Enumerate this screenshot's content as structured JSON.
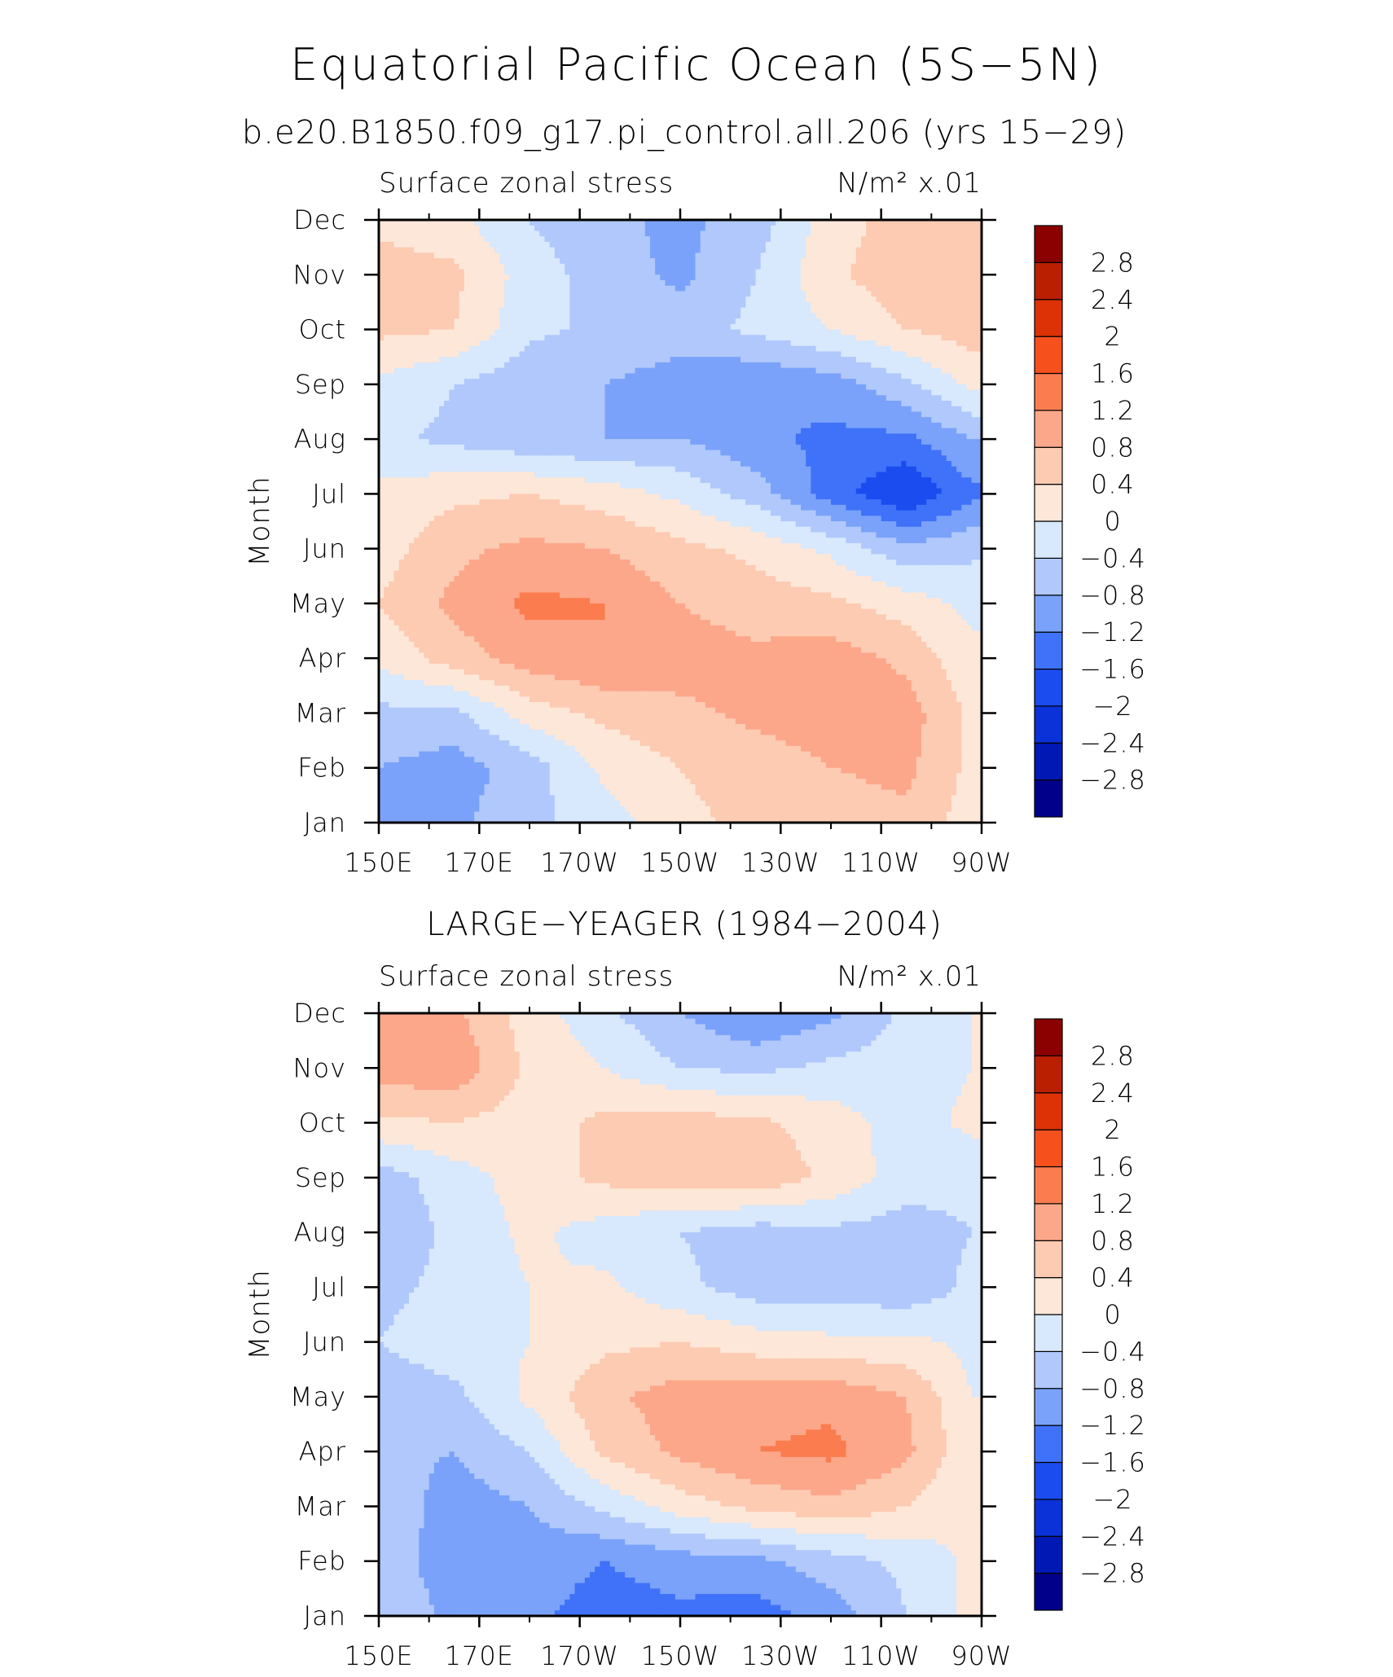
{
  "figure": {
    "title": "Equatorial Pacific Ocean (5S−5N)"
  },
  "chart_data": [
    {
      "type": "heatmap",
      "subtitle": "b.e20.B1850.f09_g17.pi_control.all.206 (yrs 15−29)",
      "left_label": "Surface zonal stress",
      "units_label": "N/m² x.01",
      "ylabel": "Month",
      "x_ticks": [
        "150E",
        "170E",
        "170W",
        "150W",
        "130W",
        "110W",
        "90W"
      ],
      "x_range": [
        150,
        270
      ],
      "y_ticks": [
        "Jan",
        "Feb",
        "Mar",
        "Apr",
        "May",
        "Jun",
        "Jul",
        "Aug",
        "Sep",
        "Oct",
        "Nov",
        "Dec"
      ],
      "levels": [
        -2.8,
        -2.4,
        -2,
        -1.6,
        -1.2,
        -0.8,
        -0.4,
        0,
        0.4,
        0.8,
        1.2,
        1.6,
        2,
        2.4,
        2.8
      ],
      "colorbar_labels": [
        "2.8",
        "2.4",
        "2",
        "1.6",
        "1.2",
        "0.8",
        "0.4",
        "0",
        "−0.4",
        "−0.8",
        "−1.2",
        "−1.6",
        "−2",
        "−2.4",
        "−2.8"
      ],
      "colors": [
        "#00008b",
        "#0018b4",
        "#0a32d8",
        "#1a4cf0",
        "#3f72f8",
        "#7aa2fa",
        "#b0c8fb",
        "#d8e8fd",
        "#fde7d8",
        "#fdcab2",
        "#fca78a",
        "#fb7c4f",
        "#f6501d",
        "#dd3205",
        "#b91f00",
        "#8b0000"
      ],
      "x": [
        150,
        165,
        180,
        195,
        210,
        225,
        240,
        255,
        268
      ],
      "y": [
        "Jan",
        "Feb",
        "Mar",
        "Apr",
        "May",
        "Jun",
        "Jul",
        "Aug",
        "Sep",
        "Oct",
        "Nov",
        "Dec"
      ],
      "z": [
        [
          -0.9,
          -0.9,
          -0.5,
          -0.2,
          0.3,
          0.5,
          0.6,
          0.7,
          0.2
        ],
        [
          -0.8,
          -1.0,
          -0.6,
          0.1,
          0.4,
          0.6,
          0.8,
          0.9,
          0.3
        ],
        [
          -0.5,
          -0.5,
          0.2,
          0.5,
          0.7,
          0.9,
          1.0,
          1.0,
          0.3
        ],
        [
          0.1,
          0.6,
          1.0,
          1.2,
          1.0,
          0.9,
          1.0,
          0.7,
          0.1
        ],
        [
          0.4,
          0.9,
          1.3,
          1.2,
          0.8,
          0.6,
          0.5,
          0.2,
          -0.1
        ],
        [
          0.2,
          0.7,
          0.9,
          0.8,
          0.5,
          0.3,
          -0.1,
          -0.7,
          -0.5
        ],
        [
          0.1,
          0.3,
          0.4,
          0.2,
          -0.1,
          -0.6,
          -1.4,
          -2.0,
          -1.3
        ],
        [
          -0.3,
          -0.5,
          -0.7,
          -0.8,
          -0.8,
          -1.1,
          -1.3,
          -1.3,
          -0.8
        ],
        [
          -0.1,
          -0.4,
          -0.7,
          -0.8,
          -1.0,
          -1.2,
          -1.0,
          -0.5,
          0.1
        ],
        [
          0.5,
          0.4,
          -0.3,
          -0.5,
          -0.6,
          -0.3,
          0.0,
          0.4,
          0.6
        ],
        [
          0.6,
          0.5,
          -0.2,
          -0.6,
          -0.9,
          -0.4,
          0.3,
          0.7,
          0.8
        ],
        [
          0.3,
          0.1,
          -0.4,
          -0.7,
          -0.9,
          -0.6,
          0.2,
          0.6,
          0.7
        ]
      ]
    },
    {
      "type": "heatmap",
      "subtitle": "LARGE−YEAGER (1984−2004)",
      "left_label": "Surface zonal stress",
      "units_label": "N/m² x.01",
      "ylabel": "Month",
      "x_ticks": [
        "150E",
        "170E",
        "170W",
        "150W",
        "130W",
        "110W",
        "90W"
      ],
      "x_range": [
        150,
        270
      ],
      "y_ticks": [
        "Jan",
        "Feb",
        "Mar",
        "Apr",
        "May",
        "Jun",
        "Jul",
        "Aug",
        "Sep",
        "Oct",
        "Nov",
        "Dec"
      ],
      "levels": [
        -2.8,
        -2.4,
        -2,
        -1.6,
        -1.2,
        -0.8,
        -0.4,
        0,
        0.4,
        0.8,
        1.2,
        1.6,
        2,
        2.4,
        2.8
      ],
      "colorbar_labels": [
        "2.8",
        "2.4",
        "2",
        "1.6",
        "1.2",
        "0.8",
        "0.4",
        "0",
        "−0.4",
        "−0.8",
        "−1.2",
        "−1.6",
        "−2",
        "−2.4",
        "−2.8"
      ],
      "colors": [
        "#00008b",
        "#0018b4",
        "#0a32d8",
        "#1a4cf0",
        "#3f72f8",
        "#7aa2fa",
        "#b0c8fb",
        "#d8e8fd",
        "#fde7d8",
        "#fdcab2",
        "#fca78a",
        "#fb7c4f",
        "#f6501d",
        "#dd3205",
        "#b91f00",
        "#8b0000"
      ],
      "x": [
        150,
        165,
        180,
        195,
        210,
        225,
        240,
        255,
        268
      ],
      "y": [
        "Jan",
        "Feb",
        "Mar",
        "Apr",
        "May",
        "Jun",
        "Jul",
        "Aug",
        "Sep",
        "Oct",
        "Nov",
        "Dec"
      ],
      "z": [
        [
          -0.5,
          -0.9,
          -1.1,
          -1.4,
          -1.3,
          -1.4,
          -1.0,
          -0.4,
          0.1
        ],
        [
          -0.6,
          -1.0,
          -1.0,
          -1.2,
          -1.0,
          -0.9,
          -0.6,
          -0.3,
          0.1
        ],
        [
          -0.5,
          -1.0,
          -0.8,
          -0.3,
          0.2,
          0.5,
          0.7,
          0.4,
          0.0
        ],
        [
          -0.7,
          -0.8,
          -0.4,
          0.5,
          0.9,
          1.2,
          1.3,
          0.9,
          0.1
        ],
        [
          -0.6,
          -0.5,
          0.1,
          0.7,
          1.0,
          1.0,
          1.1,
          0.8,
          0.0
        ],
        [
          -0.4,
          -0.2,
          0.0,
          0.3,
          0.4,
          0.2,
          0.1,
          0.1,
          -0.1
        ],
        [
          -0.5,
          -0.3,
          0.0,
          0.1,
          -0.3,
          -0.6,
          -0.6,
          -0.7,
          -0.3
        ],
        [
          -0.7,
          -0.3,
          0.1,
          -0.2,
          -0.4,
          -0.6,
          -0.5,
          -0.6,
          -0.4
        ],
        [
          -0.6,
          -0.2,
          0.2,
          0.5,
          0.6,
          0.7,
          0.3,
          -0.2,
          -0.3
        ],
        [
          0.3,
          0.4,
          0.2,
          0.5,
          0.6,
          0.5,
          0.2,
          -0.2,
          0.1
        ],
        [
          1.0,
          1.1,
          0.3,
          0.0,
          -0.4,
          -0.5,
          -0.3,
          -0.2,
          0.0
        ],
        [
          1.2,
          0.9,
          0.2,
          -0.3,
          -0.8,
          -1.2,
          -0.9,
          -0.3,
          0.0
        ]
      ]
    }
  ]
}
